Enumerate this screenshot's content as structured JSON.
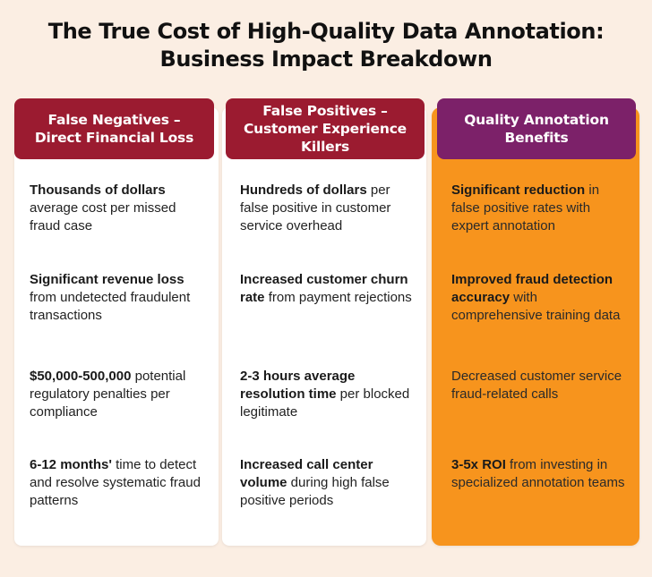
{
  "title": {
    "line1": "The True Cost of High-Quality Data Annotation:",
    "line2": "Business Impact Breakdown"
  },
  "columns": [
    {
      "header": [
        "False Negatives –",
        "Direct Financial Loss"
      ],
      "header_color": "#9b1b30",
      "items": [
        {
          "bold": "Thousands of dollars",
          "text": " average cost per missed fraud case"
        },
        {
          "bold": "Significant revenue loss",
          "text": " from undetected fraudulent transactions"
        },
        {
          "bold": "$50,000-500,000",
          "text": " potential regulatory penalties per compliance"
        },
        {
          "bold": "6-12 months'",
          "text": " time to detect and resolve systematic fraud patterns"
        }
      ]
    },
    {
      "header": [
        "False Positives –",
        "Customer Experience",
        "Killers"
      ],
      "header_color": "#9b1b30",
      "items": [
        {
          "bold": "Hundreds of dollars",
          "text": " per false positive in customer service overhead"
        },
        {
          "bold": "Increased customer churn rate",
          "text": " from payment rejections"
        },
        {
          "bold": "2-3 hours average resolution time",
          "text": " per blocked legitimate"
        },
        {
          "bold": "Increased call center volume",
          "text": " during high false positive periods"
        }
      ]
    },
    {
      "header": [
        "Quality Annotation",
        "Benefits"
      ],
      "header_color": "#7c2169",
      "panel_color": "#f7941d",
      "items": [
        {
          "bold": "Significant reduction",
          "text": " in false positive rates with expert annotation"
        },
        {
          "bold": "Improved fraud detection accuracy",
          "text": " with comprehensive training data"
        },
        {
          "bold": "",
          "text": "Decreased customer service fraud-related calls"
        },
        {
          "bold": "3-5x ROI",
          "text": " from investing in specialized annotation teams"
        }
      ]
    }
  ]
}
